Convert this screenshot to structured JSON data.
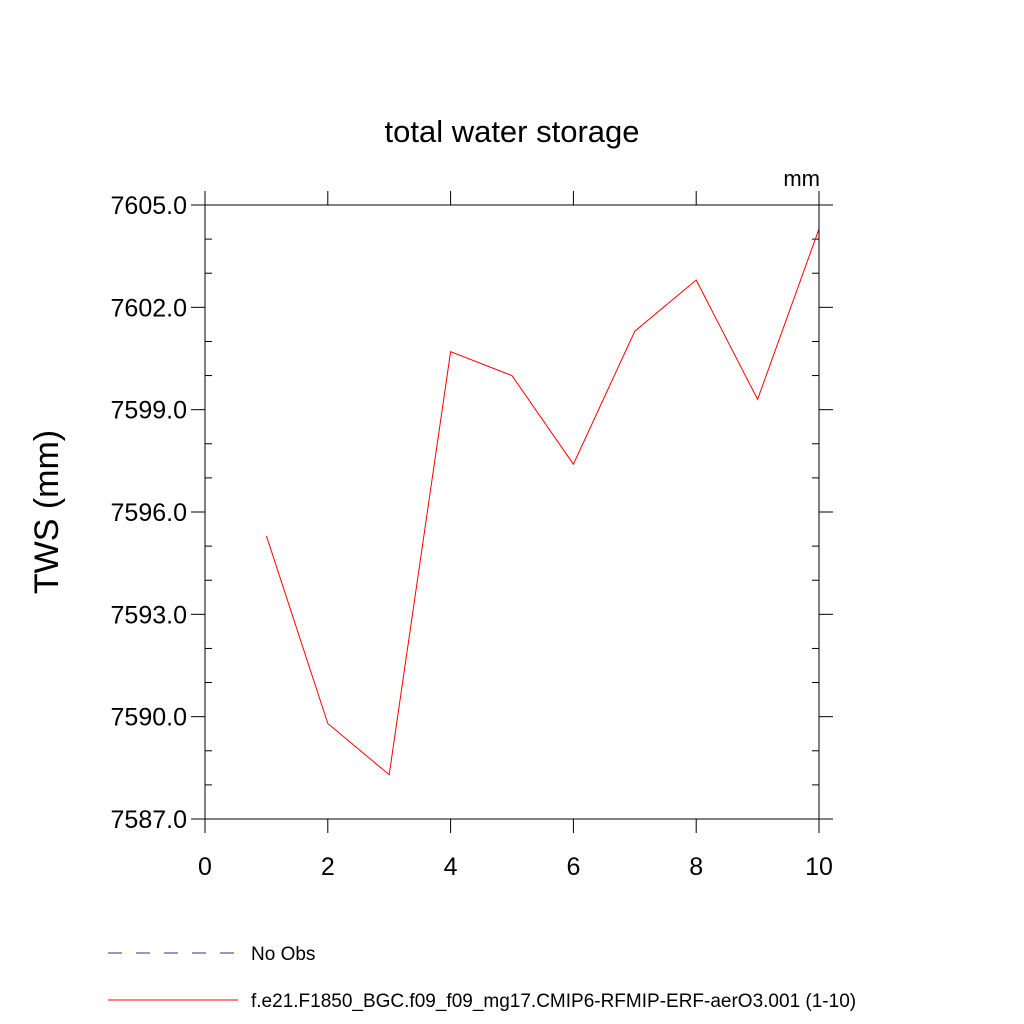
{
  "chart_data": {
    "type": "line",
    "title": "total water storage",
    "units_label": "mm",
    "xlabel": "",
    "ylabel": "TWS  (mm)",
    "xlim": [
      0,
      10
    ],
    "ylim": [
      7587.0,
      7605.0
    ],
    "x_ticks": [
      0,
      2,
      4,
      6,
      8,
      10
    ],
    "x_tick_labels": [
      "0",
      "2",
      "4",
      "6",
      "8",
      "10"
    ],
    "y_ticks": [
      7587.0,
      7590.0,
      7593.0,
      7596.0,
      7599.0,
      7602.0,
      7605.0
    ],
    "y_tick_labels": [
      "7587.0",
      "7590.0",
      "7593.0",
      "7596.0",
      "7599.0",
      "7602.0",
      "7605.0"
    ],
    "grid": false,
    "legend_position": "bottom",
    "series": [
      {
        "name": "No Obs",
        "color": "#3b2f8f",
        "dash": "dashed",
        "x": [],
        "y": []
      },
      {
        "name": "f.e21.F1850_BGC.f09_f09_mg17.CMIP6-RFMIP-ERF-aerO3.001 (1-10)",
        "color": "#ff0000",
        "dash": "solid",
        "x": [
          1,
          2,
          3,
          4,
          5,
          6,
          7,
          8,
          9,
          10
        ],
        "y": [
          7595.3,
          7589.8,
          7588.3,
          7600.7,
          7600.0,
          7597.4,
          7601.3,
          7602.8,
          7599.3,
          7604.3
        ]
      }
    ]
  }
}
